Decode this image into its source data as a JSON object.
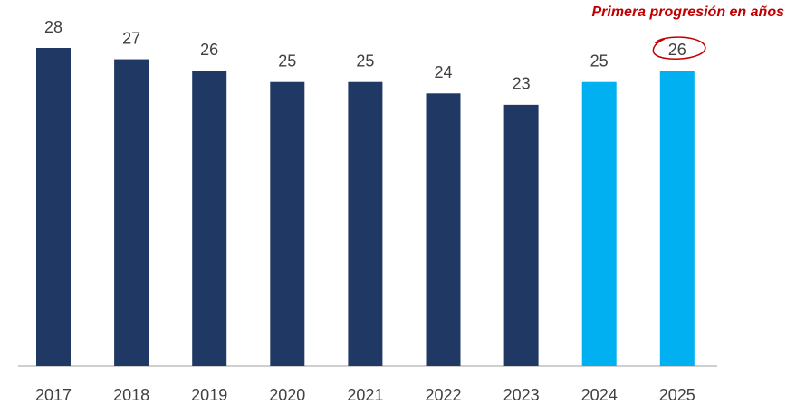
{
  "chart_data": {
    "type": "bar",
    "categories": [
      "2017",
      "2018",
      "2019",
      "2020",
      "2021",
      "2022",
      "2023",
      "2024",
      "2025"
    ],
    "values": [
      28,
      27,
      26,
      25,
      25,
      24,
      23,
      25,
      26
    ],
    "colors": [
      "#203864",
      "#203864",
      "#203864",
      "#203864",
      "#203864",
      "#203864",
      "#203864",
      "#00b0f0",
      "#00b0f0"
    ],
    "annotation": "Primera progresión en años",
    "annotation_color": "#c00000"
  }
}
